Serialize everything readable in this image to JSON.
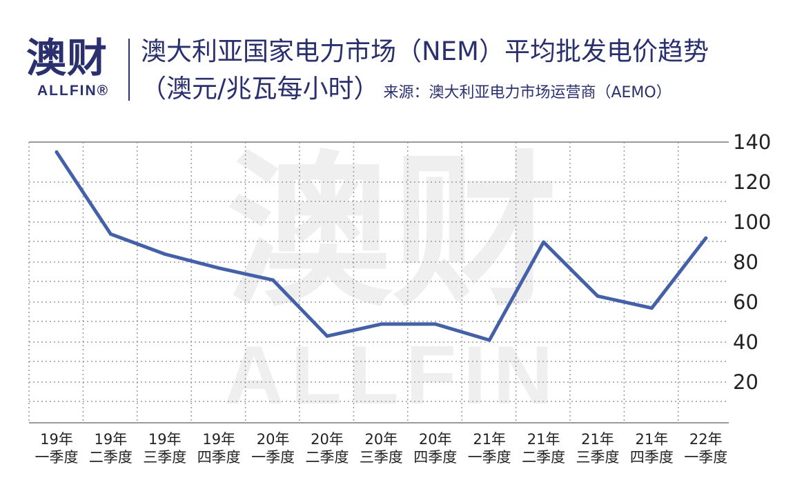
{
  "logo": {
    "cn": "澳财",
    "en": "ALLFIN®"
  },
  "header": {
    "title_line1": "澳大利亚国家电力市场（NEM）平均批发电价趋势",
    "title_unit": "（澳元/兆瓦每小时）",
    "source": "来源：澳大利亚电力市场运营商（AEMO）"
  },
  "watermark": {
    "cn": "澳财",
    "en": "ALLFIN"
  },
  "colors": {
    "line": "#4360a8",
    "brand": "#2a2f6e",
    "grid": "#999999",
    "watermark": "#efefef"
  },
  "chart_data": {
    "type": "line",
    "categories": [
      [
        "19年",
        "一季度"
      ],
      [
        "19年",
        "二季度"
      ],
      [
        "19年",
        "三季度"
      ],
      [
        "19年",
        "四季度"
      ],
      [
        "20年",
        "一季度"
      ],
      [
        "20年",
        "二季度"
      ],
      [
        "20年",
        "三季度"
      ],
      [
        "20年",
        "四季度"
      ],
      [
        "21年",
        "一季度"
      ],
      [
        "21年",
        "二季度"
      ],
      [
        "21年",
        "三季度"
      ],
      [
        "21年",
        "四季度"
      ],
      [
        "22年",
        "一季度"
      ]
    ],
    "series": [
      {
        "values": [
          135,
          94,
          84,
          77,
          71,
          43,
          49,
          49,
          41,
          90,
          63,
          57,
          92
        ]
      }
    ],
    "yticks": [
      20,
      40,
      60,
      80,
      100,
      120,
      140
    ],
    "ylim": [
      0,
      140
    ],
    "y_axis_side": "right",
    "grid": true
  }
}
